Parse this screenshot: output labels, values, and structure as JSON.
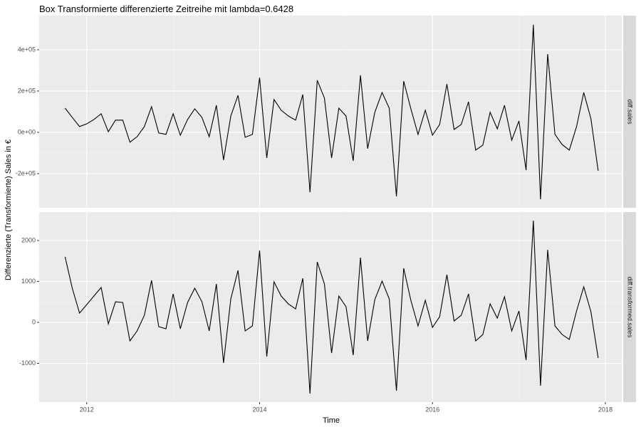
{
  "chart_data": [
    {
      "type": "line",
      "title": "Box Transformierte differenzierte Zeitreihe mit lambda=0.6428",
      "y_label": "Differenzierte (Transformierte) Sales in €",
      "strip": "diff.sales",
      "xlim": [
        2011.45,
        2018.19
      ],
      "xticks": [
        2012,
        2014,
        2016,
        2018
      ],
      "ylim": [
        -365500,
        565000
      ],
      "yticks": [
        {
          "value": -200000,
          "label": "-2e+05"
        },
        {
          "value": 0,
          "label": "0e+00"
        },
        {
          "value": 200000,
          "label": "2e+05"
        },
        {
          "value": 400000,
          "label": "4e+05"
        }
      ],
      "grid": true,
      "x": [
        2011.75,
        2011.833,
        2011.917,
        2012,
        2012.083,
        2012.167,
        2012.25,
        2012.333,
        2012.417,
        2012.5,
        2012.583,
        2012.667,
        2012.75,
        2012.833,
        2012.917,
        2013,
        2013.083,
        2013.167,
        2013.25,
        2013.333,
        2013.417,
        2013.5,
        2013.583,
        2013.667,
        2013.75,
        2013.833,
        2013.917,
        2014,
        2014.083,
        2014.167,
        2014.25,
        2014.333,
        2014.417,
        2014.5,
        2014.583,
        2014.667,
        2014.75,
        2014.833,
        2014.917,
        2015,
        2015.083,
        2015.167,
        2015.25,
        2015.333,
        2015.417,
        2015.5,
        2015.583,
        2015.667,
        2015.75,
        2015.833,
        2015.917,
        2016,
        2016.083,
        2016.167,
        2016.25,
        2016.333,
        2016.417,
        2016.5,
        2016.583,
        2016.667,
        2016.75,
        2016.833,
        2016.917,
        2017,
        2017.083,
        2017.167,
        2017.25,
        2017.333,
        2017.417,
        2017.5,
        2017.583,
        2017.667,
        2017.75,
        2017.833,
        2017.917
      ],
      "series": [
        {
          "color": "#000000",
          "values": [
            117000,
            72000,
            28000,
            41000,
            62000,
            90000,
            3000,
            59000,
            59000,
            -48000,
            -21000,
            28000,
            124000,
            -3000,
            -10000,
            90000,
            -14000,
            62000,
            114000,
            72000,
            -21000,
            131000,
            -134000,
            79000,
            179000,
            -24000,
            -10000,
            265000,
            -124000,
            159000,
            107000,
            79000,
            59000,
            183000,
            -290000,
            252000,
            166000,
            -124000,
            117000,
            79000,
            -138000,
            276000,
            -79000,
            97000,
            193000,
            117000,
            -310000,
            248000,
            114000,
            -10000,
            107000,
            -14000,
            38000,
            234000,
            14000,
            38000,
            148000,
            -86000,
            -62000,
            97000,
            17000,
            131000,
            -38000,
            55000,
            -183000,
            521000,
            -324000,
            379000,
            -10000,
            -59000,
            -86000,
            28000,
            193000,
            66000,
            -186000
          ]
        }
      ]
    },
    {
      "type": "line",
      "x_label": "Time",
      "strip": "diff.transformed.sales",
      "xlim": [
        2011.45,
        2018.19
      ],
      "xticks": [
        2012,
        2014,
        2016,
        2018
      ],
      "ylim": [
        -1948,
        2696
      ],
      "yticks": [
        -1000,
        0,
        1000,
        2000
      ],
      "grid": true,
      "x": [
        2011.75,
        2011.833,
        2011.917,
        2012,
        2012.083,
        2012.167,
        2012.25,
        2012.333,
        2012.417,
        2012.5,
        2012.583,
        2012.667,
        2012.75,
        2012.833,
        2012.917,
        2013,
        2013.083,
        2013.167,
        2013.25,
        2013.333,
        2013.417,
        2013.5,
        2013.583,
        2013.667,
        2013.75,
        2013.833,
        2013.917,
        2014,
        2014.083,
        2014.167,
        2014.25,
        2014.333,
        2014.417,
        2014.5,
        2014.583,
        2014.667,
        2014.75,
        2014.833,
        2014.917,
        2015,
        2015.083,
        2015.167,
        2015.25,
        2015.333,
        2015.417,
        2015.5,
        2015.583,
        2015.667,
        2015.75,
        2015.833,
        2015.917,
        2016,
        2016.083,
        2016.167,
        2016.25,
        2016.333,
        2016.417,
        2016.5,
        2016.583,
        2016.667,
        2016.75,
        2016.833,
        2016.917,
        2017,
        2017.083,
        2017.167,
        2017.25,
        2017.333,
        2017.417,
        2017.5,
        2017.583,
        2017.667,
        2017.75,
        2017.833,
        2017.917
      ],
      "series": [
        {
          "color": "#000000",
          "values": [
            1600,
            835,
            226,
            435,
            643,
            852,
            -35,
            504,
            487,
            -452,
            -209,
            174,
            1026,
            -104,
            -157,
            696,
            -157,
            487,
            835,
            504,
            -209,
            939,
            -991,
            574,
            1270,
            -209,
            -87,
            1757,
            -835,
            991,
            643,
            452,
            330,
            1078,
            -1739,
            1478,
            939,
            -748,
            643,
            383,
            -800,
            1583,
            -452,
            557,
            1009,
            574,
            -1670,
            1322,
            539,
            -87,
            539,
            -122,
            139,
            1165,
            35,
            174,
            696,
            -452,
            -296,
            452,
            104,
            626,
            -209,
            278,
            -922,
            2487,
            -1548,
            1774,
            -87,
            -296,
            -417,
            278,
            870,
            261,
            -870
          ]
        }
      ]
    }
  ]
}
